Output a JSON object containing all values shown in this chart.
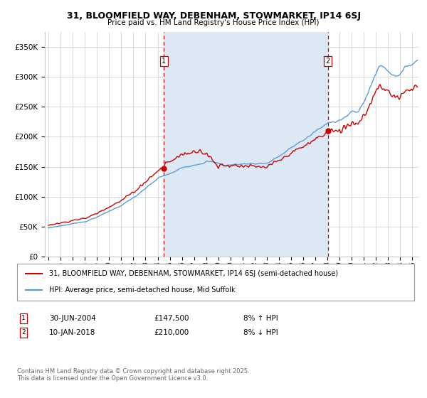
{
  "title1": "31, BLOOMFIELD WAY, DEBENHAM, STOWMARKET, IP14 6SJ",
  "title2": "Price paid vs. HM Land Registry's House Price Index (HPI)",
  "legend_line1": "31, BLOOMFIELD WAY, DEBENHAM, STOWMARKET, IP14 6SJ (semi-detached house)",
  "legend_line2": "HPI: Average price, semi-detached house, Mid Suffolk",
  "purchase1_date": "30-JUN-2004",
  "purchase1_price": 147500,
  "purchase1_hpi": "8% ↑ HPI",
  "purchase2_date": "10-JAN-2018",
  "purchase2_price": 210000,
  "purchase2_hpi": "8% ↓ HPI",
  "footer": "Contains HM Land Registry data © Crown copyright and database right 2025.\nThis data is licensed under the Open Government Licence v3.0.",
  "red_color": "#cc0000",
  "blue_color": "#5b9bd5",
  "shade_color": "#dce9f5",
  "vline_color": "#cc0000",
  "grid_color": "#cccccc",
  "background_color": "#ffffff",
  "ylim": [
    0,
    375000
  ],
  "yticks": [
    0,
    50000,
    100000,
    150000,
    200000,
    250000,
    300000,
    350000
  ],
  "ytick_labels": [
    "£0",
    "£50K",
    "£100K",
    "£150K",
    "£200K",
    "£250K",
    "£300K",
    "£350K"
  ],
  "purchase1_x": 2004.5,
  "purchase2_x": 2018.04,
  "xmin": 1995,
  "xmax": 2025.5
}
